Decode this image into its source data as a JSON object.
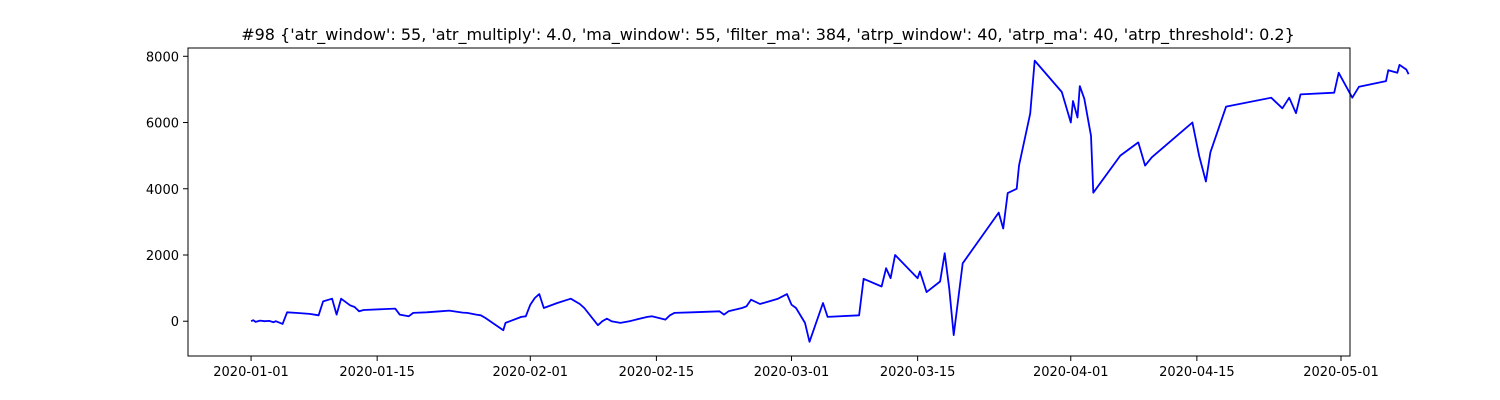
{
  "chart_data": {
    "type": "line",
    "title": "#98 {'atr_window': 55, 'atr_multiply': 4.0, 'ma_window': 55, 'filter_ma': 384, 'atrp_window': 40, 'atrp_ma': 40, 'atrp_threshold': 0.2}",
    "xlabel": "",
    "ylabel": "",
    "xlim": [
      "2019-12-25",
      "2020-05-02"
    ],
    "ylim": [
      -1050,
      8250
    ],
    "grid": false,
    "line_color": "#0000ff",
    "x_ticks": [
      {
        "date": "2020-01-01",
        "label": "2020-01-01"
      },
      {
        "date": "2020-01-15",
        "label": "2020-01-15"
      },
      {
        "date": "2020-02-01",
        "label": "2020-02-01"
      },
      {
        "date": "2020-02-15",
        "label": "2020-02-15"
      },
      {
        "date": "2020-03-01",
        "label": "2020-03-01"
      },
      {
        "date": "2020-03-15",
        "label": "2020-03-15"
      },
      {
        "date": "2020-04-01",
        "label": "2020-04-01"
      },
      {
        "date": "2020-04-15",
        "label": "2020-04-15"
      },
      {
        "date": "2020-05-01",
        "label": "2020-05-01"
      }
    ],
    "y_ticks": [
      {
        "value": 0,
        "label": "0"
      },
      {
        "value": 2000,
        "label": "2000"
      },
      {
        "value": 4000,
        "label": "4000"
      },
      {
        "value": 6000,
        "label": "6000"
      },
      {
        "value": 8000,
        "label": "8000"
      }
    ],
    "series": [
      {
        "points": [
          [
            "2020-01-01 00:00",
            0
          ],
          [
            "2020-01-01 06:00",
            30
          ],
          [
            "2020-01-01 12:00",
            -20
          ],
          [
            "2020-01-02 00:00",
            20
          ],
          [
            "2020-01-02 12:00",
            0
          ],
          [
            "2020-01-03 00:00",
            10
          ],
          [
            "2020-01-03 12:00",
            -30
          ],
          [
            "2020-01-03 18:00",
            0
          ],
          [
            "2020-01-04 12:00",
            -80
          ],
          [
            "2020-01-05 00:00",
            270
          ],
          [
            "2020-01-06 00:00",
            250
          ],
          [
            "2020-01-07 12:00",
            220
          ],
          [
            "2020-01-08 12:00",
            180
          ],
          [
            "2020-01-09 00:00",
            600
          ],
          [
            "2020-01-10 00:00",
            680
          ],
          [
            "2020-01-10 12:00",
            200
          ],
          [
            "2020-01-11 00:00",
            680
          ],
          [
            "2020-01-12 00:00",
            480
          ],
          [
            "2020-01-12 12:00",
            430
          ],
          [
            "2020-01-13 00:00",
            300
          ],
          [
            "2020-01-13 12:00",
            340
          ],
          [
            "2020-01-16 00:00",
            370
          ],
          [
            "2020-01-17 00:00",
            380
          ],
          [
            "2020-01-17 12:00",
            200
          ],
          [
            "2020-01-18 12:00",
            150
          ],
          [
            "2020-01-19 00:00",
            250
          ],
          [
            "2020-01-20 12:00",
            270
          ],
          [
            "2020-01-22 00:00",
            300
          ],
          [
            "2020-01-23 00:00",
            320
          ],
          [
            "2020-01-24 12:00",
            260
          ],
          [
            "2020-01-25 00:00",
            250
          ],
          [
            "2020-01-26 00:00",
            200
          ],
          [
            "2020-01-26 12:00",
            180
          ],
          [
            "2020-01-27 00:00",
            100
          ],
          [
            "2020-01-29 00:00",
            -270
          ],
          [
            "2020-01-29 06:00",
            -50
          ],
          [
            "2020-01-31 00:00",
            130
          ],
          [
            "2020-01-31 12:00",
            150
          ],
          [
            "2020-02-01 00:00",
            500
          ],
          [
            "2020-02-01 12:00",
            700
          ],
          [
            "2020-02-02 00:00",
            820
          ],
          [
            "2020-02-02 12:00",
            400
          ],
          [
            "2020-02-04 00:00",
            550
          ],
          [
            "2020-02-05 12:00",
            680
          ],
          [
            "2020-02-06 12:00",
            520
          ],
          [
            "2020-02-07 00:00",
            400
          ],
          [
            "2020-02-08 12:00",
            -120
          ],
          [
            "2020-02-09 00:00",
            0
          ],
          [
            "2020-02-09 12:00",
            80
          ],
          [
            "2020-02-10 00:00",
            0
          ],
          [
            "2020-02-11 00:00",
            -50
          ],
          [
            "2020-02-12 00:00",
            0
          ],
          [
            "2020-02-14 00:00",
            130
          ],
          [
            "2020-02-14 12:00",
            150
          ],
          [
            "2020-02-16 00:00",
            50
          ],
          [
            "2020-02-16 12:00",
            180
          ],
          [
            "2020-02-17 00:00",
            250
          ],
          [
            "2020-02-19 00:00",
            270
          ],
          [
            "2020-02-22 00:00",
            300
          ],
          [
            "2020-02-22 12:00",
            200
          ],
          [
            "2020-02-23 00:00",
            300
          ],
          [
            "2020-02-24 12:00",
            400
          ],
          [
            "2020-02-25 00:00",
            450
          ],
          [
            "2020-02-25 12:00",
            650
          ],
          [
            "2020-02-26 12:00",
            520
          ],
          [
            "2020-02-28 12:00",
            680
          ],
          [
            "2020-02-29 12:00",
            820
          ],
          [
            "2020-03-01 00:00",
            500
          ],
          [
            "2020-03-01 12:00",
            400
          ],
          [
            "2020-03-02 12:00",
            -50
          ],
          [
            "2020-03-03 00:00",
            -620
          ],
          [
            "2020-03-04 12:00",
            550
          ],
          [
            "2020-03-05 00:00",
            130
          ],
          [
            "2020-03-08 12:00",
            180
          ],
          [
            "2020-03-09 00:00",
            1280
          ],
          [
            "2020-03-11 00:00",
            1050
          ],
          [
            "2020-03-11 12:00",
            1600
          ],
          [
            "2020-03-12 00:00",
            1300
          ],
          [
            "2020-03-12 12:00",
            2000
          ],
          [
            "2020-03-15 00:00",
            1300
          ],
          [
            "2020-03-15 06:00",
            1500
          ],
          [
            "2020-03-16 00:00",
            880
          ],
          [
            "2020-03-17 12:00",
            1200
          ],
          [
            "2020-03-18 00:00",
            2050
          ],
          [
            "2020-03-18 12:00",
            1000
          ],
          [
            "2020-03-19 00:00",
            -420
          ],
          [
            "2020-03-20 00:00",
            1750
          ],
          [
            "2020-03-24 00:00",
            3280
          ],
          [
            "2020-03-24 12:00",
            2800
          ],
          [
            "2020-03-25 00:00",
            3870
          ],
          [
            "2020-03-26 00:00",
            4000
          ],
          [
            "2020-03-26 06:00",
            4700
          ],
          [
            "2020-03-27 12:00",
            6270
          ],
          [
            "2020-03-28 00:00",
            7870
          ],
          [
            "2020-03-31 00:00",
            6920
          ],
          [
            "2020-04-01 00:00",
            6000
          ],
          [
            "2020-04-01 06:00",
            6650
          ],
          [
            "2020-04-01 18:00",
            6150
          ],
          [
            "2020-04-02 00:00",
            7100
          ],
          [
            "2020-04-02 12:00",
            6720
          ],
          [
            "2020-04-03 06:00",
            5600
          ],
          [
            "2020-04-03 12:00",
            3880
          ],
          [
            "2020-04-06 12:00",
            5000
          ],
          [
            "2020-04-08 12:00",
            5400
          ],
          [
            "2020-04-09 06:00",
            4700
          ],
          [
            "2020-04-10 00:00",
            4950
          ],
          [
            "2020-04-14 12:00",
            6000
          ],
          [
            "2020-04-15 06:00",
            5000
          ],
          [
            "2020-04-16 00:00",
            4220
          ],
          [
            "2020-04-16 12:00",
            5100
          ],
          [
            "2020-04-18 06:00",
            6480
          ],
          [
            "2020-04-23 06:00",
            6750
          ],
          [
            "2020-04-24 12:00",
            6430
          ],
          [
            "2020-04-25 06:00",
            6750
          ],
          [
            "2020-04-26 00:00",
            6280
          ],
          [
            "2020-04-26 12:00",
            6850
          ],
          [
            "2020-04-30 06:00",
            6900
          ],
          [
            "2020-04-30 18:00",
            7500
          ],
          [
            "2020-05-02 06:00",
            6750
          ],
          [
            "2020-05-03 00:00",
            7080
          ],
          [
            "2020-05-06 00:00",
            7250
          ],
          [
            "2020-05-06 06:00",
            7580
          ],
          [
            "2020-05-07 06:00",
            7500
          ],
          [
            "2020-05-07 12:00",
            7740
          ],
          [
            "2020-05-08 06:00",
            7600
          ],
          [
            "2020-05-08 12:00",
            7460
          ]
        ]
      }
    ]
  }
}
